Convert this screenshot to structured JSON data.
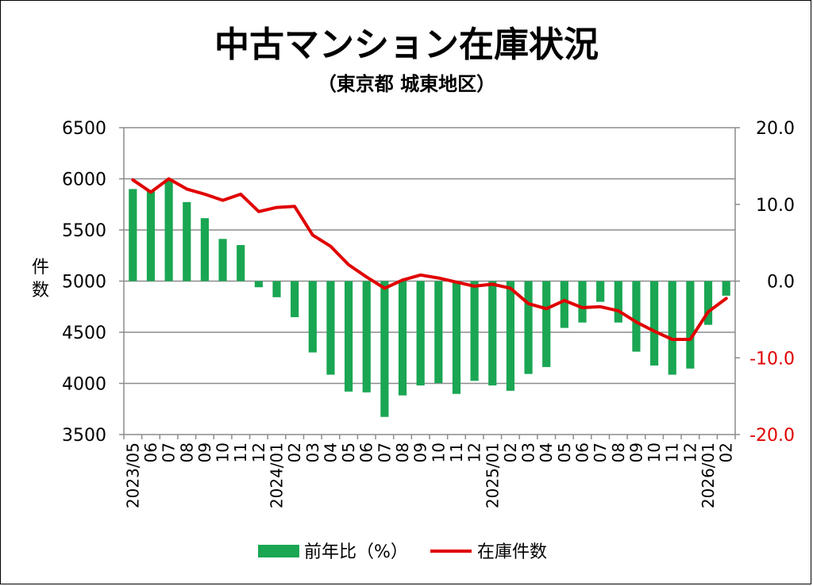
{
  "chart_data": {
    "type": "bar+line",
    "title": "中古マンション在庫状況",
    "subtitle": "（東京都 城東地区）",
    "ylabel": "件数",
    "ylabel_chars": [
      "件",
      "数"
    ],
    "left_axis": {
      "min": 3500,
      "max": 6500,
      "step": 500,
      "ticks": [
        "6500",
        "6000",
        "5500",
        "5000",
        "4500",
        "4000",
        "3500"
      ]
    },
    "right_axis": {
      "min": -20,
      "max": 20,
      "step": 10,
      "ticks": [
        "20.0",
        "10.0",
        "0.0",
        "-10.0",
        "-20.0"
      ],
      "color_positive": "#000000",
      "color_negative": "#e00000"
    },
    "categories": [
      "2023/05",
      "06",
      "07",
      "08",
      "09",
      "10",
      "11",
      "12",
      "2024/01",
      "02",
      "03",
      "04",
      "05",
      "06",
      "07",
      "08",
      "09",
      "10",
      "11",
      "12",
      "2025/01",
      "02",
      "03",
      "04",
      "05",
      "06",
      "07",
      "08",
      "09",
      "10",
      "11",
      "12",
      "2026/01",
      "02"
    ],
    "series": [
      {
        "name": "前年比（%）",
        "type": "bar",
        "axis": "right",
        "color": "#1aa653",
        "values": [
          12.0,
          11.7,
          13.1,
          10.3,
          8.2,
          5.5,
          4.7,
          -0.8,
          -2.1,
          -4.7,
          -9.3,
          -12.2,
          -14.4,
          -14.5,
          -17.7,
          -14.9,
          -13.6,
          -13.3,
          -14.7,
          -13.0,
          -13.6,
          -14.3,
          -12.1,
          -11.2,
          -6.1,
          -5.4,
          -2.7,
          -5.4,
          -9.2,
          -11.0,
          -12.2,
          -11.4,
          -5.7,
          -1.9
        ]
      },
      {
        "name": "在庫件数",
        "type": "line",
        "axis": "left",
        "color": "#e00000",
        "values": [
          5990,
          5870,
          6000,
          5900,
          5850,
          5790,
          5850,
          5680,
          5720,
          5730,
          5450,
          5340,
          5160,
          5040,
          4930,
          5010,
          5060,
          5030,
          4990,
          4950,
          4970,
          4930,
          4780,
          4730,
          4810,
          4740,
          4750,
          4710,
          4600,
          4510,
          4430,
          4430,
          4700,
          4830
        ]
      }
    ],
    "legend": [
      "前年比（%）",
      "在庫件数"
    ],
    "legend_position": "bottom",
    "grid": true
  }
}
